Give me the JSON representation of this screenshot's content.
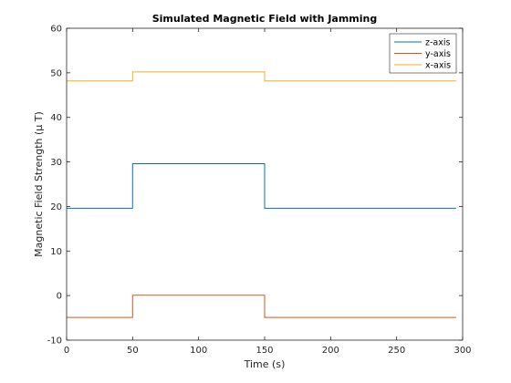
{
  "chart_data": {
    "type": "line",
    "title": "Simulated Magnetic Field with Jamming",
    "xlabel": "Time (s)",
    "ylabel": "Magnetic Field Strength (μ T)",
    "xlim": [
      0,
      300
    ],
    "ylim": [
      -10,
      60
    ],
    "xticks": [
      0,
      50,
      100,
      150,
      200,
      250,
      300
    ],
    "yticks": [
      -10,
      0,
      10,
      20,
      30,
      40,
      50,
      60
    ],
    "grid": false,
    "legend_position": "top-right",
    "series": [
      {
        "name": "z-axis",
        "color": "#0072BD",
        "x": [
          0,
          50,
          50,
          150,
          150,
          295
        ],
        "y": [
          19.6,
          19.6,
          29.6,
          29.6,
          19.6,
          19.6
        ]
      },
      {
        "name": "y-axis",
        "color": "#D95319",
        "x": [
          0,
          50,
          50,
          150,
          150,
          295
        ],
        "y": [
          -4.9,
          -4.9,
          0.1,
          0.1,
          -4.9,
          -4.9
        ]
      },
      {
        "name": "x-axis",
        "color": "#EDB120",
        "x": [
          0,
          50,
          50,
          150,
          150,
          295
        ],
        "y": [
          48.2,
          48.2,
          50.2,
          50.2,
          48.2,
          48.2
        ]
      }
    ]
  }
}
